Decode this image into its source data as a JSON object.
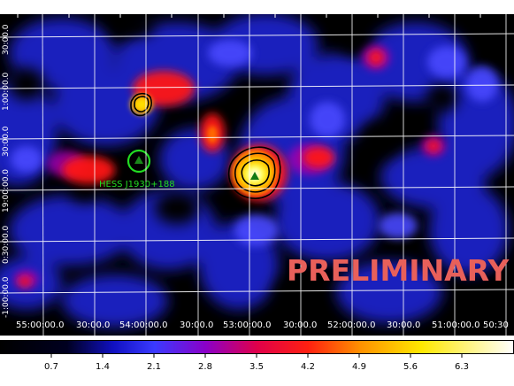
{
  "image": {
    "source_label": "HESS J1930+188",
    "watermark": "PRELIMINARY"
  },
  "axes": {
    "ra_ticks": [
      "55:00:00.0",
      "30:00.0",
      "54:00:00.0",
      "30:00.0",
      "53:00:00.0",
      "30:00.0",
      "52:00:00.0",
      "30:00.0",
      "51:00:00.0",
      "50:30"
    ],
    "dec_ticks": [
      "30:00.0",
      "1:00:00.0",
      "30:00.0",
      "19:00:00.0",
      "0:30:00.0",
      "-1:00:00.0"
    ]
  },
  "colorbar": {
    "ticks": [
      "0.7",
      "1.4",
      "2.1",
      "2.8",
      "3.5",
      "4.2",
      "4.9",
      "5.6",
      "6.3"
    ]
  },
  "colors": {
    "source_marker": "#22dd22",
    "watermark": "#e8605a",
    "grid": "#ffffff",
    "contour": "#000000"
  }
}
